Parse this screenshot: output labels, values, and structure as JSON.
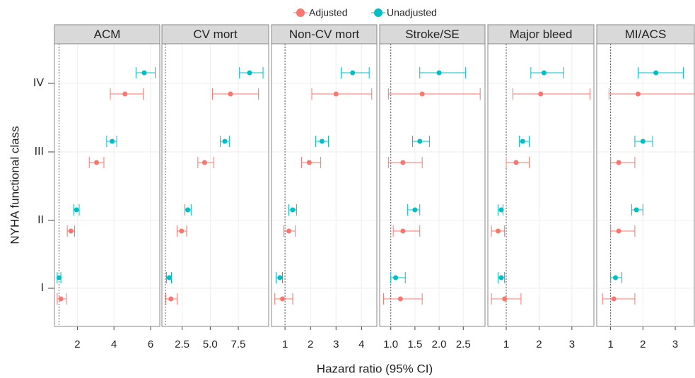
{
  "legend_position": "top",
  "xlabel": "Hazard ratio (95% CI)",
  "ylabel": "NYHA functional class",
  "chart_data": [
    {
      "type": "forest",
      "title": "ACM",
      "categories": [
        "I",
        "II",
        "III",
        "IV"
      ],
      "reference_line": 1,
      "xlim": [
        0.75,
        6.5
      ],
      "xticks": [
        2,
        4,
        6
      ],
      "series": [
        {
          "name": "Adjusted",
          "color": "#F8766D",
          "values": [
            1.1,
            1.65,
            3.05,
            4.6
          ],
          "lower": [
            0.9,
            1.45,
            2.65,
            3.8
          ],
          "upper": [
            1.4,
            1.85,
            3.45,
            5.6
          ]
        },
        {
          "name": "Unadjusted",
          "color": "#00BFC4",
          "values": [
            1.0,
            1.95,
            3.9,
            5.65
          ],
          "lower": [
            0.9,
            1.8,
            3.6,
            5.2
          ],
          "upper": [
            1.1,
            2.1,
            4.15,
            6.25
          ]
        }
      ]
    },
    {
      "type": "forest",
      "title": "CV mort",
      "categories": [
        "I",
        "II",
        "III",
        "IV"
      ],
      "reference_line": 1,
      "xlim": [
        0.7,
        10.2
      ],
      "xticks": [
        {
          "value": 2.5,
          "label": "2.5"
        },
        {
          "value": 5,
          "label": "5.0"
        },
        {
          "value": 7.5,
          "label": "7.5"
        }
      ],
      "series": [
        {
          "name": "Adjusted",
          "color": "#F8766D",
          "values": [
            1.5,
            2.45,
            4.5,
            6.8
          ],
          "lower": [
            1.05,
            2.05,
            3.9,
            5.2
          ],
          "upper": [
            2.05,
            2.9,
            5.3,
            9.3
          ]
        },
        {
          "name": "Unadjusted",
          "color": "#00BFC4",
          "values": [
            1.35,
            3.0,
            6.3,
            8.5
          ],
          "lower": [
            1.1,
            2.75,
            5.9,
            7.6
          ],
          "upper": [
            1.55,
            3.3,
            6.7,
            9.7
          ]
        }
      ]
    },
    {
      "type": "forest",
      "title": "Non-CV mort",
      "categories": [
        "I",
        "II",
        "III",
        "IV"
      ],
      "reference_line": 1,
      "xlim": [
        0.47,
        4.6
      ],
      "xticks": [
        1,
        2,
        3,
        4
      ],
      "series": [
        {
          "name": "Adjusted",
          "color": "#F8766D",
          "values": [
            0.9,
            1.15,
            1.95,
            3.0
          ],
          "lower": [
            0.6,
            0.95,
            1.65,
            2.05
          ],
          "upper": [
            1.3,
            1.4,
            2.4,
            4.4
          ]
        },
        {
          "name": "Unadjusted",
          "color": "#00BFC4",
          "values": [
            0.8,
            1.3,
            2.45,
            3.65
          ],
          "lower": [
            0.65,
            1.15,
            2.2,
            3.2
          ],
          "upper": [
            0.9,
            1.45,
            2.7,
            4.3
          ]
        }
      ]
    },
    {
      "type": "forest",
      "title": "Stroke/SE",
      "categories": [
        "I",
        "II",
        "III",
        "IV"
      ],
      "reference_line": 1,
      "xlim": [
        0.77,
        2.95
      ],
      "xticks": [
        {
          "value": 1,
          "label": "1.0"
        },
        1.5,
        {
          "value": 2,
          "label": "2.0"
        },
        2.5
      ],
      "series": [
        {
          "name": "Adjusted",
          "color": "#F8766D",
          "values": [
            1.2,
            1.25,
            1.25,
            1.65
          ],
          "lower": [
            0.85,
            1.05,
            0.95,
            0.95
          ],
          "upper": [
            1.65,
            1.6,
            1.65,
            2.85
          ]
        },
        {
          "name": "Unadjusted",
          "color": "#00BFC4",
          "values": [
            1.1,
            1.5,
            1.6,
            2.0
          ],
          "lower": [
            1.0,
            1.35,
            1.45,
            1.6
          ],
          "upper": [
            1.3,
            1.6,
            1.8,
            2.55
          ]
        }
      ]
    },
    {
      "type": "forest",
      "title": "Major bleed",
      "categories": [
        "I",
        "II",
        "III",
        "IV"
      ],
      "reference_line": 1,
      "xlim": [
        0.44,
        3.67
      ],
      "xticks": [
        1,
        2,
        3
      ],
      "series": [
        {
          "name": "Adjusted",
          "color": "#F8766D",
          "values": [
            0.95,
            0.75,
            1.3,
            2.05
          ],
          "lower": [
            0.55,
            0.55,
            1.0,
            1.2
          ],
          "upper": [
            1.45,
            0.95,
            1.7,
            3.55
          ]
        },
        {
          "name": "Unadjusted",
          "color": "#00BFC4",
          "values": [
            0.85,
            0.85,
            1.5,
            2.15
          ],
          "lower": [
            0.75,
            0.75,
            1.4,
            1.75
          ],
          "upper": [
            0.95,
            0.9,
            1.7,
            2.75
          ]
        }
      ]
    },
    {
      "type": "forest",
      "title": "MI/ACS",
      "categories": [
        "I",
        "II",
        "III",
        "IV"
      ],
      "reference_line": 1,
      "xlim": [
        0.57,
        3.59
      ],
      "xticks": [
        1,
        2,
        3
      ],
      "series": [
        {
          "name": "Adjusted",
          "color": "#F8766D",
          "values": [
            1.1,
            1.25,
            1.25,
            1.85
          ],
          "lower": [
            0.75,
            1.0,
            1.0,
            0.95
          ],
          "upper": [
            1.75,
            1.75,
            1.75,
            3.6
          ]
        },
        {
          "name": "Unadjusted",
          "color": "#00BFC4",
          "values": [
            1.15,
            1.8,
            2.0,
            2.4
          ],
          "lower": [
            1.0,
            1.65,
            1.75,
            1.85
          ],
          "upper": [
            1.35,
            2.0,
            2.3,
            3.25
          ]
        }
      ]
    }
  ]
}
